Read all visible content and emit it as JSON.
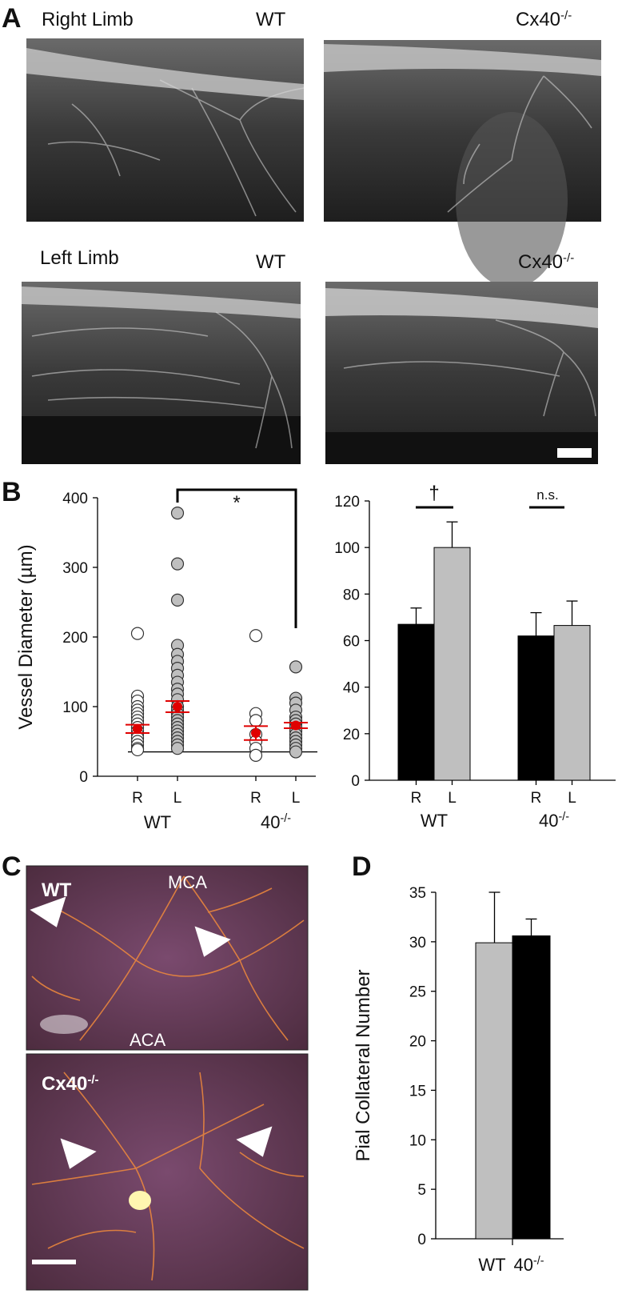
{
  "figure": {
    "panel_letters": [
      "A",
      "B",
      "C",
      "D"
    ],
    "panel_a": {
      "right_limb": "Right Limb",
      "left_limb": "Left Limb",
      "wt": "WT",
      "ko": "Cx40",
      "ko_sup": "-/-"
    },
    "panel_c": {
      "wt": "WT",
      "mca": "MCA",
      "aca": "ACA",
      "ko": "Cx40",
      "ko_sup": "-/-"
    }
  },
  "chart_data": [
    {
      "type": "strip",
      "ylabel": "Vessel Diameter (µm)",
      "categories": [
        "R",
        "L",
        "R",
        "L"
      ],
      "groups": [
        "WT",
        "40"
      ],
      "group_sups": [
        null,
        "-/-"
      ],
      "points": [
        [
          205,
          115,
          108,
          100,
          95,
          90,
          85,
          80,
          75,
          70,
          65,
          60,
          55,
          50,
          45,
          40,
          38
        ],
        [
          378,
          305,
          253,
          188,
          175,
          165,
          155,
          145,
          135,
          125,
          118,
          110,
          100,
          95,
          90,
          85,
          80,
          75,
          70,
          65,
          60,
          55,
          50,
          45,
          40
        ],
        [
          202,
          90,
          80,
          60,
          50,
          40,
          30
        ],
        [
          157,
          112,
          105,
          95,
          85,
          80,
          75,
          70,
          65,
          60,
          55,
          50,
          45,
          40,
          35
        ]
      ],
      "point_colors": [
        "#ffffff",
        "#bfbfbf",
        "#ffffff",
        "#bfbfbf"
      ],
      "means": [
        68,
        100,
        62,
        73
      ],
      "errors": [
        6,
        8,
        10,
        4
      ],
      "mean_color": "#e00000",
      "reference_line": 35,
      "annotation": "*",
      "ylim": [
        0,
        400
      ],
      "yticks": [
        0,
        100,
        200,
        300,
        400
      ]
    },
    {
      "type": "bar",
      "categories": [
        "WT",
        "40"
      ],
      "category_sups": [
        null,
        "-/-"
      ],
      "series": [
        {
          "name": "R",
          "color": "#000000",
          "values": [
            67,
            62
          ],
          "errors": [
            7,
            10
          ]
        },
        {
          "name": "L",
          "color": "#bfbfbf",
          "values": [
            100,
            66.5
          ],
          "errors": [
            11,
            10.5
          ]
        }
      ],
      "annotations": [
        "†",
        "n.s."
      ],
      "ylim": [
        0,
        120
      ],
      "yticks": [
        0,
        20,
        40,
        60,
        80,
        100,
        120
      ]
    },
    {
      "type": "bar",
      "ylabel": "Pial Collateral Number",
      "categories": [
        "WT",
        "40"
      ],
      "category_sups": [
        null,
        "-/-"
      ],
      "values": [
        29.9,
        30.6
      ],
      "errors": [
        5.1,
        1.7
      ],
      "colors": [
        "#bfbfbf",
        "#000000"
      ],
      "ylim": [
        0,
        35
      ],
      "yticks": [
        0,
        5,
        10,
        15,
        20,
        25,
        30,
        35
      ]
    }
  ]
}
